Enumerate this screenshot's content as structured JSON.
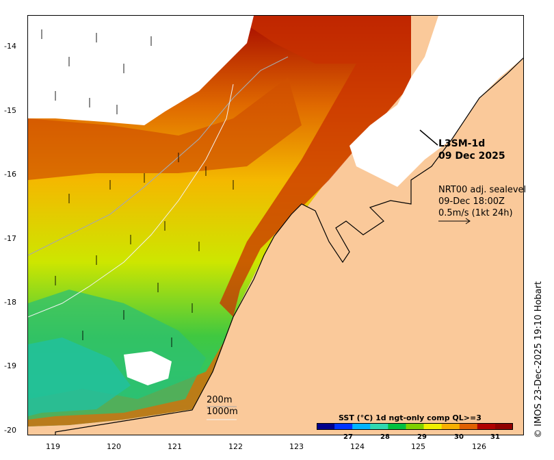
{
  "map": {
    "lon_range": [
      118.6,
      126.8
    ],
    "lat_range": [
      -20.1,
      -13.5
    ],
    "lon_ticks": [
      "119",
      "120",
      "121",
      "122",
      "123",
      "124",
      "125",
      "126"
    ],
    "lat_ticks": [
      "-14",
      "-15",
      "-16",
      "-17",
      "-18",
      "-19",
      "-20"
    ],
    "colors": {
      "land": "#fac99a",
      "cloud": "#ffffff",
      "coast": "#000000",
      "isobath": "#a8a8a8"
    }
  },
  "product": {
    "line1": "L3SM-1d",
    "line2": "09 Dec 2025"
  },
  "model": {
    "line1": "NRT00 adj. sealevel",
    "line2": "09-Dec 18:00Z",
    "line3": "0.5m/s (1kt 24h)"
  },
  "isobaths": {
    "label_200": "200m",
    "label_1000": "1000m"
  },
  "colorbar": {
    "title": "SST (°C) 1d ngt-only comp QL>=3",
    "ticks": [
      "27",
      "28",
      "29",
      "30",
      "31"
    ],
    "range": [
      26.5,
      31.8
    ],
    "colors": [
      "#00008c",
      "#0033ff",
      "#00b4ff",
      "#30d8b0",
      "#00c040",
      "#80d000",
      "#f0f000",
      "#f8b000",
      "#e06000",
      "#b00000",
      "#900000"
    ]
  },
  "credit": "© IMOS 23-Dec-2025 19:10 Hobart"
}
